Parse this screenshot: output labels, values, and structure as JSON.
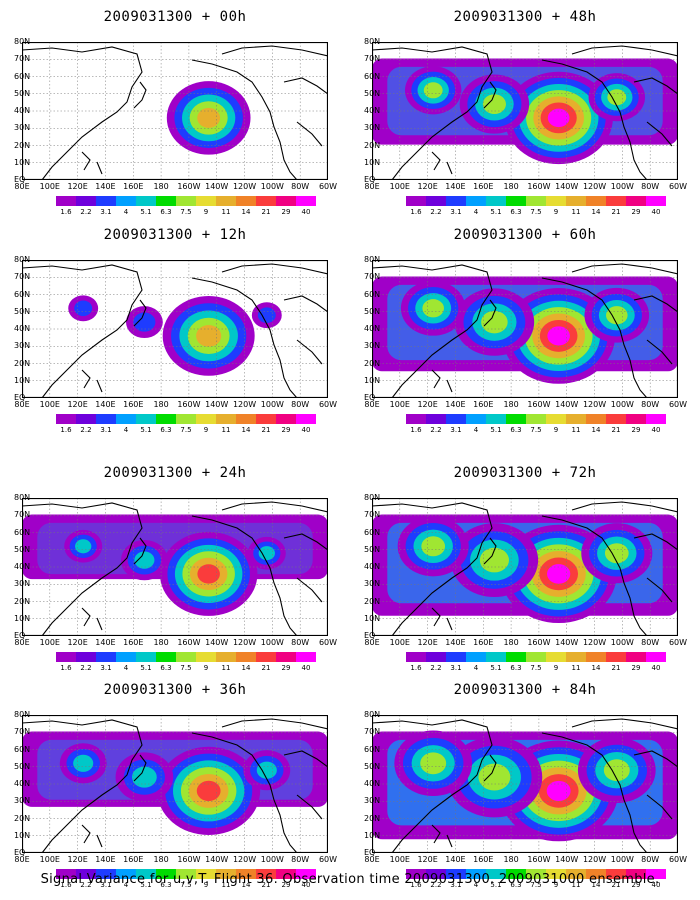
{
  "panels": [
    {
      "title": "2009031300 + 00h",
      "level": 0.35
    },
    {
      "title": "2009031300 + 12h",
      "level": 0.5
    },
    {
      "title": "2009031300 + 24h",
      "level": 0.6
    },
    {
      "title": "2009031300 + 36h",
      "level": 0.7
    },
    {
      "title": "2009031300 + 48h",
      "level": 0.8
    },
    {
      "title": "2009031300 + 60h",
      "level": 0.88
    },
    {
      "title": "2009031300 + 72h",
      "level": 0.94
    },
    {
      "title": "2009031300 + 84h",
      "level": 1.0
    }
  ],
  "lat_labels": [
    "80N",
    "70N",
    "60N",
    "50N",
    "40N",
    "30N",
    "20N",
    "10N",
    "EQ"
  ],
  "lon_labels": [
    "80E",
    "100E",
    "120E",
    "140E",
    "160E",
    "180",
    "160W",
    "140W",
    "120W",
    "100W",
    "80W",
    "60W"
  ],
  "colorbar": {
    "labels": [
      "1.6",
      "2.2",
      "3.1",
      "4",
      "5.1",
      "6.3",
      "7.5",
      "9",
      "11",
      "14",
      "21",
      "29",
      "40"
    ],
    "colors": [
      "#a000c8",
      "#6e00dc",
      "#1e3cff",
      "#00a0ff",
      "#00c8c8",
      "#00dc00",
      "#a0e632",
      "#e6dc32",
      "#e6af2d",
      "#f08228",
      "#fa3c3c",
      "#f00082",
      "#ff00ff"
    ]
  },
  "footer": "Signal Variance for u,v,T. Flight 36. Observation time 2009031300. 2009031000 ensemble."
}
